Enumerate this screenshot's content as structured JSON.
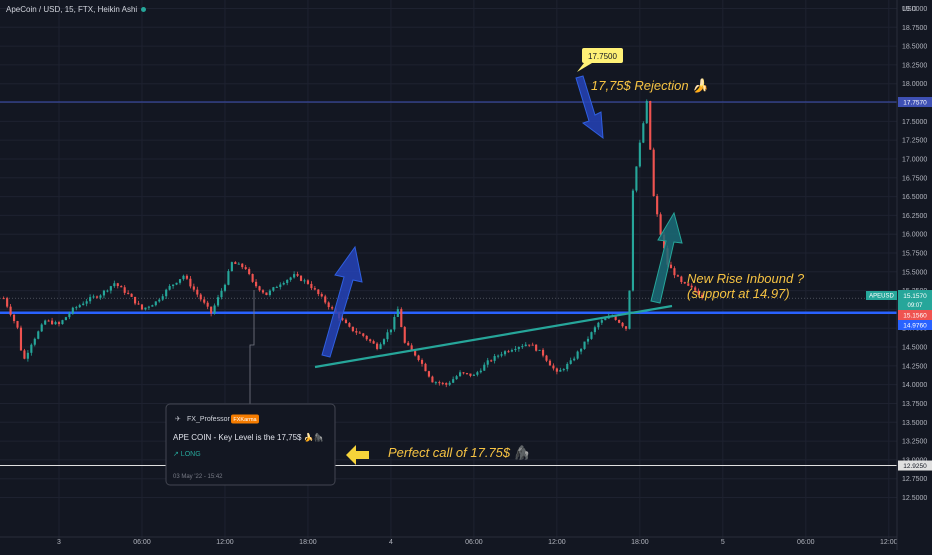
{
  "header": {
    "title": "ApeCoin / USD, 15, FTX, Heikin Ashi",
    "currency": "USD"
  },
  "colors": {
    "background": "#131722",
    "bull": "#26a69a",
    "bear": "#ef5350",
    "support_line": "#2962ff",
    "trendline": "#26a69a",
    "resistance_line": "#3f51b5",
    "annotation_text": "#f6c343",
    "callout_bg": "#fff176",
    "bottom_line": "#e0e0e0"
  },
  "tweet": {
    "avatar_icon": "✈",
    "author": "FX_Professor",
    "badge": "FXKarma",
    "text": "APE COIN - Key Level is the 17,75$ 🍌🦍",
    "direction": "↗ LONG",
    "date": "03 May '22 - 15:42"
  },
  "annotations": {
    "rejection": "17,75$ Rejection 🍌",
    "rise_line1": "New Rise Inbound ?",
    "rise_line2": "(support at 14.97)",
    "perfect_call": "Perfect call of 17.75$ 🦍",
    "callout_value": "17.7500"
  },
  "price_tags": {
    "resistance": "17.7570",
    "symbol": "APEUSD",
    "symbol_price": "15.1570",
    "countdown": "09:07",
    "current": "15.1560",
    "support": "14.9760",
    "bottom": "12.9250"
  },
  "chart_data": {
    "type": "candlestick",
    "title": "ApeCoin / USD, 15, FTX, Heikin Ashi",
    "y_axis": {
      "ylim": [
        12.4,
        19.05
      ],
      "ticks": [
        "12.5000",
        "12.7500",
        "13.0000",
        "13.2500",
        "13.5000",
        "13.7500",
        "14.0000",
        "14.2500",
        "14.5000",
        "14.7500",
        "15.0000",
        "15.2500",
        "15.5000",
        "15.7500",
        "16.0000",
        "16.2500",
        "16.5000",
        "16.7500",
        "17.0000",
        "17.2500",
        "17.5000",
        "17.7500",
        "18.0000",
        "18.2500",
        "18.5000",
        "18.7500",
        "19.0000"
      ]
    },
    "x_axis": {
      "labels": [
        "3",
        "06:00",
        "12:00",
        "18:00",
        "4",
        "06:00",
        "12:00",
        "18:00",
        "5",
        "06:00",
        "12:00"
      ],
      "hours": [
        0,
        6,
        12,
        18,
        24,
        30,
        36,
        42,
        48,
        54,
        60
      ]
    },
    "bar_hours": 0.25,
    "keypoints": [
      [
        -4,
        15.15
      ],
      [
        -3,
        14.75
      ],
      [
        -2.6,
        14.3
      ],
      [
        -2,
        14.55
      ],
      [
        -1,
        14.85
      ],
      [
        0,
        14.8
      ],
      [
        1,
        15.0
      ],
      [
        2,
        15.12
      ],
      [
        3,
        15.2
      ],
      [
        4,
        15.35
      ],
      [
        5,
        15.2
      ],
      [
        6,
        15.0
      ],
      [
        7,
        15.1
      ],
      [
        8,
        15.3
      ],
      [
        9,
        15.45
      ],
      [
        10,
        15.2
      ],
      [
        11,
        14.95
      ],
      [
        12,
        15.35
      ],
      [
        12.5,
        15.62
      ],
      [
        13.5,
        15.55
      ],
      [
        14,
        15.35
      ],
      [
        15,
        15.2
      ],
      [
        16,
        15.35
      ],
      [
        17,
        15.45
      ],
      [
        18,
        15.35
      ],
      [
        19,
        15.15
      ],
      [
        20,
        14.95
      ],
      [
        21,
        14.75
      ],
      [
        22,
        14.65
      ],
      [
        23,
        14.5
      ],
      [
        24,
        14.75
      ],
      [
        24.5,
        15.0
      ],
      [
        25,
        14.55
      ],
      [
        26,
        14.35
      ],
      [
        27,
        14.05
      ],
      [
        28,
        14.0
      ],
      [
        29,
        14.15
      ],
      [
        30,
        14.12
      ],
      [
        31,
        14.3
      ],
      [
        32,
        14.42
      ],
      [
        33,
        14.5
      ],
      [
        34,
        14.55
      ],
      [
        35,
        14.4
      ],
      [
        36,
        14.15
      ],
      [
        37,
        14.3
      ],
      [
        38,
        14.55
      ],
      [
        39,
        14.82
      ],
      [
        40,
        14.92
      ],
      [
        41,
        14.75
      ],
      [
        41.2,
        15.0
      ],
      [
        41.5,
        16.6
      ],
      [
        42,
        17.2
      ],
      [
        42.5,
        17.75
      ],
      [
        43,
        16.5
      ],
      [
        43.5,
        16.0
      ],
      [
        44,
        15.6
      ],
      [
        45,
        15.35
      ],
      [
        46,
        15.25
      ],
      [
        46.6,
        15.16
      ]
    ],
    "support_level": 14.976,
    "current_price": 15.156,
    "resistance_level": 17.757,
    "lower_level": 12.925
  }
}
